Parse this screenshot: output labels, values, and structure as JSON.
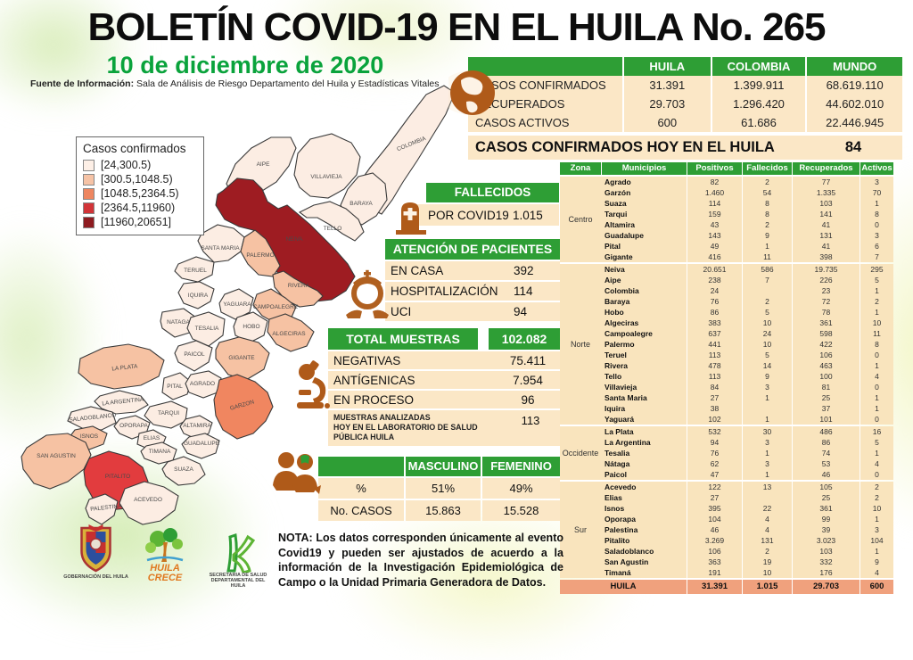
{
  "header": {
    "title": "BOLETÍN COVID-19 EN EL HUILA No. 265",
    "date": "10 de diciembre de 2020",
    "source_prefix": "Fuente de Información:",
    "source_rest": " Sala de Análisis de Riesgo Departamento del Huila y Estadísticas Vitales"
  },
  "colors": {
    "green": "#2e9e35",
    "cream": "#fbe7c6",
    "salmon_total": "#f0a17d",
    "map_light": "#fcede3",
    "map_salmon": "#f6c2a3",
    "map_orange": "#f08660",
    "map_red": "#e23c3e",
    "map_darkred": "#9e1c22",
    "icon_orange": "#af5a19"
  },
  "summary": {
    "headers": [
      "",
      "HUILA",
      "COLOMBIA",
      "MUNDO"
    ],
    "rows": [
      [
        "CASOS CONFIRMADOS",
        "31.391",
        "1.399.911",
        "68.619.110"
      ],
      [
        "RECUPERADOS",
        "29.703",
        "1.296.420",
        "44.602.010"
      ],
      [
        "CASOS ACTIVOS",
        "600",
        "61.686",
        "22.446.945"
      ]
    ],
    "today_label": "CASOS CONFIRMADOS HOY EN EL HUILA",
    "today_value": "84"
  },
  "legend": {
    "title": "Casos confirmados",
    "items": [
      {
        "range": "[24,300.5)",
        "color": "#fdefe6"
      },
      {
        "range": "[300.5,1048.5)",
        "color": "#f6c3a6"
      },
      {
        "range": "[1048.5,2364.5)",
        "color": "#ee8660"
      },
      {
        "range": "[2364.5,11960)",
        "color": "#d23438"
      },
      {
        "range": "[11960,20651]",
        "color": "#8e1b20"
      }
    ]
  },
  "fallecidos": {
    "title": "FALLECIDOS",
    "row_label": "POR COVID19",
    "value": "1.015"
  },
  "atencion": {
    "title": "ATENCIÓN DE PACIENTES",
    "rows": [
      [
        "EN CASA",
        "392"
      ],
      [
        "HOSPITALIZACIÓN",
        "114"
      ],
      [
        "UCI",
        "94"
      ]
    ]
  },
  "muestras": {
    "title": "TOTAL MUESTRAS",
    "total": "102.082",
    "rows": [
      [
        "NEGATIVAS",
        "75.411"
      ],
      [
        "ANTÍGENICAS",
        "7.954"
      ],
      [
        "EN PROCESO",
        "96"
      ]
    ],
    "analizadas_label": "MUESTRAS ANALIZADAS\nHOY EN EL LABORATORIO DE SALUD\nPÚBLICA HUILA",
    "analizadas_value": "113"
  },
  "genero": {
    "headers": [
      "MASCULINO",
      "FEMENINO"
    ],
    "rows": [
      [
        "%",
        "51%",
        "49%"
      ],
      [
        "No. CASOS",
        "15.863",
        "15.528"
      ]
    ]
  },
  "muni_table": {
    "headers": [
      "Zona",
      "Municipios",
      "Positivos",
      "Fallecidos",
      "Recuperados",
      "Activos"
    ],
    "zones": [
      {
        "name": "Centro",
        "rows": [
          [
            "Agrado",
            "82",
            "2",
            "77",
            "3"
          ],
          [
            "Garzón",
            "1.460",
            "54",
            "1.335",
            "70"
          ],
          [
            "Suaza",
            "114",
            "8",
            "103",
            "1"
          ],
          [
            "Tarqui",
            "159",
            "8",
            "141",
            "8"
          ],
          [
            "Altamira",
            "43",
            "2",
            "41",
            "0"
          ],
          [
            "Guadalupe",
            "143",
            "9",
            "131",
            "3"
          ],
          [
            "Pital",
            "49",
            "1",
            "41",
            "6"
          ],
          [
            "Gigante",
            "416",
            "11",
            "398",
            "7"
          ]
        ]
      },
      {
        "name": "Norte",
        "rows": [
          [
            "Neiva",
            "20.651",
            "586",
            "19.735",
            "295"
          ],
          [
            "Aipe",
            "238",
            "7",
            "226",
            "5"
          ],
          [
            "Colombia",
            "24",
            "",
            "23",
            "1"
          ],
          [
            "Baraya",
            "76",
            "2",
            "72",
            "2"
          ],
          [
            "Hobo",
            "86",
            "5",
            "78",
            "1"
          ],
          [
            "Algeciras",
            "383",
            "10",
            "361",
            "10"
          ],
          [
            "Campoalegre",
            "637",
            "24",
            "598",
            "11"
          ],
          [
            "Palermo",
            "441",
            "10",
            "422",
            "8"
          ],
          [
            "Teruel",
            "113",
            "5",
            "106",
            "0"
          ],
          [
            "Rivera",
            "478",
            "14",
            "463",
            "1"
          ],
          [
            "Tello",
            "113",
            "9",
            "100",
            "4"
          ],
          [
            "Villavieja",
            "84",
            "3",
            "81",
            "0"
          ],
          [
            "Santa Maria",
            "27",
            "1",
            "25",
            "1"
          ],
          [
            "Iquira",
            "38",
            "",
            "37",
            "1"
          ],
          [
            "Yaguará",
            "102",
            "1",
            "101",
            "0"
          ]
        ]
      },
      {
        "name": "Occidente",
        "rows": [
          [
            "La Plata",
            "532",
            "30",
            "486",
            "16"
          ],
          [
            "La Argentina",
            "94",
            "3",
            "86",
            "5"
          ],
          [
            "Tesalia",
            "76",
            "1",
            "74",
            "1"
          ],
          [
            "Nátaga",
            "62",
            "3",
            "53",
            "4"
          ],
          [
            "Paicol",
            "47",
            "1",
            "46",
            "0"
          ]
        ]
      },
      {
        "name": "Sur",
        "rows": [
          [
            "Acevedo",
            "122",
            "13",
            "105",
            "2"
          ],
          [
            "Elias",
            "27",
            "",
            "25",
            "2"
          ],
          [
            "Isnos",
            "395",
            "22",
            "361",
            "10"
          ],
          [
            "Oporapa",
            "104",
            "4",
            "99",
            "1"
          ],
          [
            "Palestina",
            "46",
            "4",
            "39",
            "3"
          ],
          [
            "Pitalito",
            "3.269",
            "131",
            "3.023",
            "104"
          ],
          [
            "Saladoblanco",
            "106",
            "2",
            "103",
            "1"
          ],
          [
            "San Agustin",
            "363",
            "19",
            "332",
            "9"
          ],
          [
            "Timaná",
            "191",
            "10",
            "176",
            "4"
          ]
        ]
      }
    ],
    "total": [
      "HUILA",
      "31.391",
      "1.015",
      "29.703",
      "600"
    ]
  },
  "map": {
    "regions": [
      {
        "id": "colombia",
        "label": "COLOMBIA",
        "color": "#fcede3"
      },
      {
        "id": "aipe",
        "label": "AIPE",
        "color": "#fcede3"
      },
      {
        "id": "villavieja",
        "label": "VILLAVIEJA",
        "color": "#fcede3"
      },
      {
        "id": "baraya",
        "label": "BARAYA",
        "color": "#fcede3"
      },
      {
        "id": "tello",
        "label": "TELLO",
        "color": "#fcede3"
      },
      {
        "id": "neiva",
        "label": "NEIVA",
        "color": "#9e1c22"
      },
      {
        "id": "santa_maria",
        "label": "SANTA MARIA",
        "color": "#fcede3"
      },
      {
        "id": "palermo",
        "label": "PALERMO",
        "color": "#f6c2a3"
      },
      {
        "id": "rivera",
        "label": "RIVERA",
        "color": "#f6c2a3"
      },
      {
        "id": "teruel",
        "label": "TERUEL",
        "color": "#fcede3"
      },
      {
        "id": "iquira",
        "label": "IQUIRA",
        "color": "#fcede3"
      },
      {
        "id": "yaguara",
        "label": "YAGUARA",
        "color": "#fcede3"
      },
      {
        "id": "campoalegre",
        "label": "CAMPOALEGRE",
        "color": "#f6c2a3"
      },
      {
        "id": "nataga",
        "label": "NATAGA",
        "color": "#fcede3"
      },
      {
        "id": "tesalia",
        "label": "TESALIA",
        "color": "#fcede3"
      },
      {
        "id": "hobo",
        "label": "HOBO",
        "color": "#fcede3"
      },
      {
        "id": "algeciras",
        "label": "ALGECIRAS",
        "color": "#f6c2a3"
      },
      {
        "id": "paicol",
        "label": "PAICOL",
        "color": "#fcede3"
      },
      {
        "id": "gigante",
        "label": "GIGANTE",
        "color": "#f6c2a3"
      },
      {
        "id": "la_plata",
        "label": "LA PLATA",
        "color": "#f6c2a3"
      },
      {
        "id": "pital",
        "label": "PITAL",
        "color": "#fcede3"
      },
      {
        "id": "agrado",
        "label": "AGRADO",
        "color": "#fcede3"
      },
      {
        "id": "garzon",
        "label": "GARZON",
        "color": "#f08660"
      },
      {
        "id": "la_argentina",
        "label": "LA ARGENTINA",
        "color": "#fcede3"
      },
      {
        "id": "tarqui",
        "label": "TARQUI",
        "color": "#fcede3"
      },
      {
        "id": "saladoblanco",
        "label": "SALADOBLANCO",
        "color": "#fcede3"
      },
      {
        "id": "oporapa",
        "label": "OPORAPA",
        "color": "#fcede3"
      },
      {
        "id": "altamira",
        "label": "ALTAMIRA",
        "color": "#fcede3"
      },
      {
        "id": "elias",
        "label": "ELIAS",
        "color": "#fcede3"
      },
      {
        "id": "isnos",
        "label": "ISNOS",
        "color": "#f6c2a3"
      },
      {
        "id": "guadalupe",
        "label": "GUADALUPE",
        "color": "#fcede3"
      },
      {
        "id": "timana",
        "label": "TIMANA",
        "color": "#fcede3"
      },
      {
        "id": "suaza",
        "label": "SUAZA",
        "color": "#fcede3"
      },
      {
        "id": "san_agustin",
        "label": "SAN AGUSTIN",
        "color": "#f6c2a3"
      },
      {
        "id": "pitalito",
        "label": "PITALITO",
        "color": "#e23c3e"
      },
      {
        "id": "acevedo",
        "label": "ACEVEDO",
        "color": "#fcede3"
      },
      {
        "id": "palestina",
        "label": "PALESTINA",
        "color": "#fcede3"
      }
    ]
  },
  "nota": "NOTA: Los datos corresponden únicamente al evento Covid19 y pueden ser ajustados de acuerdo a la información de la Investigación Epidemiológica de Campo o la Unidad Primaria Generadora de Datos.",
  "logos": {
    "gobernacion": "GOBERNACIÓN DEL HUILA",
    "huila_crece_1": "HUILA",
    "huila_crece_2": "CRECE",
    "secretaria": "SECRETARIA DE SALUD\nDEPARTAMENTAL DEL HUILA"
  }
}
